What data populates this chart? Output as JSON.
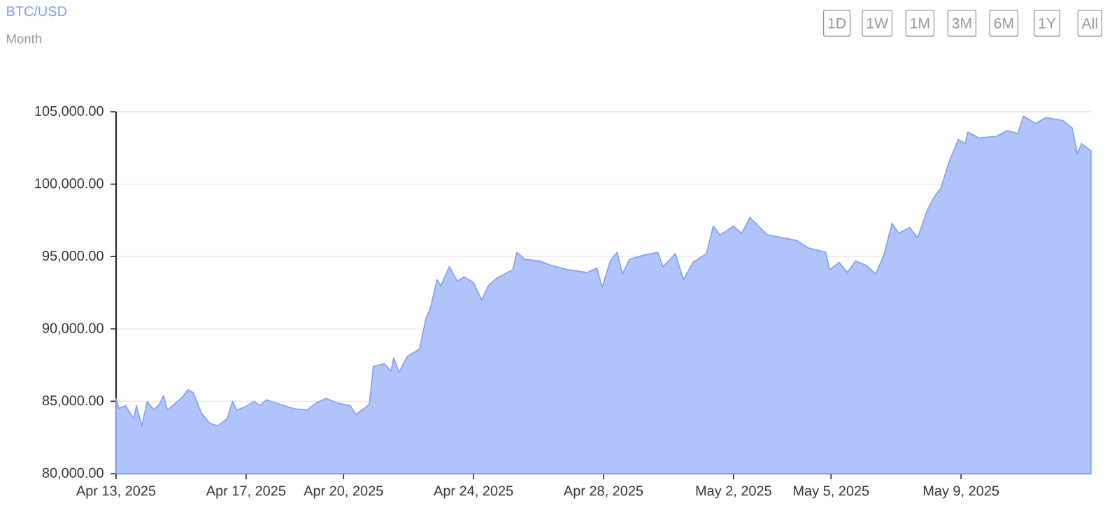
{
  "chart_data": {
    "type": "area",
    "title": "BTC/USD",
    "subtitle": "Month",
    "annotations": [
      "1D",
      "1W",
      "1M",
      "3M",
      "6M",
      "1Y",
      "All"
    ],
    "xlim": [
      "2025-04-13",
      "2025-05-13"
    ],
    "xticks": [
      {
        "value": "2025-04-13",
        "label": "Apr 13, 2025"
      },
      {
        "value": "2025-04-17",
        "label": "Apr 17, 2025"
      },
      {
        "value": "2025-04-20",
        "label": "Apr 20, 2025"
      },
      {
        "value": "2025-04-24",
        "label": "Apr 24, 2025"
      },
      {
        "value": "2025-04-28",
        "label": "Apr 28, 2025"
      },
      {
        "value": "2025-05-02",
        "label": "May 2, 2025"
      },
      {
        "value": "2025-05-05",
        "label": "May 5, 2025"
      },
      {
        "value": "2025-05-09",
        "label": "May 9, 2025"
      }
    ],
    "ylim": [
      80000,
      105000
    ],
    "yticks": [
      {
        "value": 80000,
        "label": "80,000.00"
      },
      {
        "value": 85000,
        "label": "85,000.00"
      },
      {
        "value": 90000,
        "label": "90,000.00"
      },
      {
        "value": 95000,
        "label": "95,000.00"
      },
      {
        "value": 100000,
        "label": "100,000.00"
      },
      {
        "value": 105000,
        "label": "105,000.00"
      }
    ],
    "grid": "y",
    "series": [
      {
        "color": "#809ef7",
        "x": [
          "2025-04-13T00:00",
          "2025-04-13T02:00",
          "2025-04-13T07:00",
          "2025-04-13T13:00",
          "2025-04-13T15:00",
          "2025-04-13T19:00",
          "2025-04-13T23:00",
          "2025-04-14T04:00",
          "2025-04-14T08:00",
          "2025-04-14T11:00",
          "2025-04-14T14:00",
          "2025-04-14T19:00",
          "2025-04-15T01:00",
          "2025-04-15T05:00",
          "2025-04-15T09:00",
          "2025-04-15T15:00",
          "2025-04-15T21:00",
          "2025-04-16T03:00",
          "2025-04-16T10:00",
          "2025-04-16T14:00",
          "2025-04-16T17:00",
          "2025-04-16T23:00",
          "2025-04-17T06:00",
          "2025-04-17T10:00",
          "2025-04-17T15:00",
          "2025-04-18T01:00",
          "2025-04-18T11:00",
          "2025-04-18T21:00",
          "2025-04-19T04:00",
          "2025-04-19T11:00",
          "2025-04-19T19:00",
          "2025-04-20T05:00",
          "2025-04-20T09:00",
          "2025-04-20T15:00",
          "2025-04-20T19:00",
          "2025-04-20T22:00",
          "2025-04-21T06:00",
          "2025-04-21T11:00",
          "2025-04-21T13:00",
          "2025-04-21T17:00",
          "2025-04-21T23:00",
          "2025-04-22T08:00",
          "2025-04-22T13:00",
          "2025-04-22T16:00",
          "2025-04-22T21:00",
          "2025-04-23T00:00",
          "2025-04-23T06:00",
          "2025-04-23T12:00",
          "2025-04-23T17:00",
          "2025-04-24T00:00",
          "2025-04-24T06:00",
          "2025-04-24T11:00",
          "2025-04-24T17:00",
          "2025-04-24T23:00",
          "2025-04-25T05:00",
          "2025-04-25T08:00",
          "2025-04-25T14:00",
          "2025-04-26T01:00",
          "2025-04-26T09:00",
          "2025-04-26T21:00",
          "2025-04-27T12:00",
          "2025-04-27T19:00",
          "2025-04-27T23:00",
          "2025-04-28T05:00",
          "2025-04-28T10:00",
          "2025-04-28T14:00",
          "2025-04-28T19:00",
          "2025-04-29T06:00",
          "2025-04-29T16:00",
          "2025-04-29T20:00",
          "2025-04-30T05:00",
          "2025-04-30T11:00",
          "2025-04-30T18:00",
          "2025-05-01T04:00",
          "2025-05-01T09:00",
          "2025-05-01T14:00",
          "2025-05-02T00:00",
          "2025-05-02T06:00",
          "2025-05-02T12:00",
          "2025-05-03T01:00",
          "2025-05-03T12:00",
          "2025-05-03T23:00",
          "2025-05-04T07:00",
          "2025-05-04T20:00",
          "2025-05-04T23:00",
          "2025-05-05T06:00",
          "2025-05-05T12:00",
          "2025-05-05T18:00",
          "2025-05-06T02:00",
          "2025-05-06T09:00",
          "2025-05-06T15:00",
          "2025-05-06T21:00",
          "2025-05-07T02:00",
          "2025-05-07T10:00",
          "2025-05-07T16:00",
          "2025-05-07T23:00",
          "2025-05-08T04:00",
          "2025-05-08T09:00",
          "2025-05-08T15:00",
          "2025-05-08T22:00",
          "2025-05-09T03:00",
          "2025-05-09T05:00",
          "2025-05-09T13:00",
          "2025-05-10T02:00",
          "2025-05-10T10:00",
          "2025-05-10T18:00",
          "2025-05-10T22:00",
          "2025-05-11T07:00",
          "2025-05-11T15:00",
          "2025-05-12T03:00",
          "2025-05-12T10:00",
          "2025-05-12T14:00",
          "2025-05-12T17:00",
          "2025-05-13T00:00"
        ],
        "values": [
          85200,
          84500,
          84700,
          83800,
          84700,
          83300,
          85000,
          84400,
          84800,
          85400,
          84400,
          84800,
          85300,
          85800,
          85600,
          84200,
          83500,
          83300,
          83800,
          85000,
          84400,
          84600,
          85000,
          84700,
          85100,
          84800,
          84500,
          84400,
          84900,
          85200,
          84900,
          84700,
          84100,
          84500,
          84800,
          87400,
          87600,
          87100,
          88000,
          87000,
          88100,
          88600,
          90800,
          91400,
          93400,
          93000,
          94300,
          93300,
          93600,
          93200,
          92000,
          93000,
          93500,
          93800,
          94100,
          95300,
          94800,
          94700,
          94400,
          94100,
          93900,
          94200,
          92900,
          94700,
          95300,
          93800,
          94800,
          95100,
          95300,
          94300,
          95200,
          93400,
          94600,
          95200,
          97100,
          96500,
          97100,
          96600,
          97700,
          96500,
          96300,
          96100,
          95600,
          95300,
          94100,
          94600,
          93900,
          94700,
          94400,
          93800,
          95100,
          97300,
          96600,
          97000,
          96300,
          98200,
          99100,
          99700,
          101500,
          103100,
          102800,
          103600,
          103200,
          103300,
          103700,
          103500,
          104700,
          104200,
          104600,
          104400,
          103900,
          102100,
          102800,
          102300
        ]
      }
    ]
  }
}
